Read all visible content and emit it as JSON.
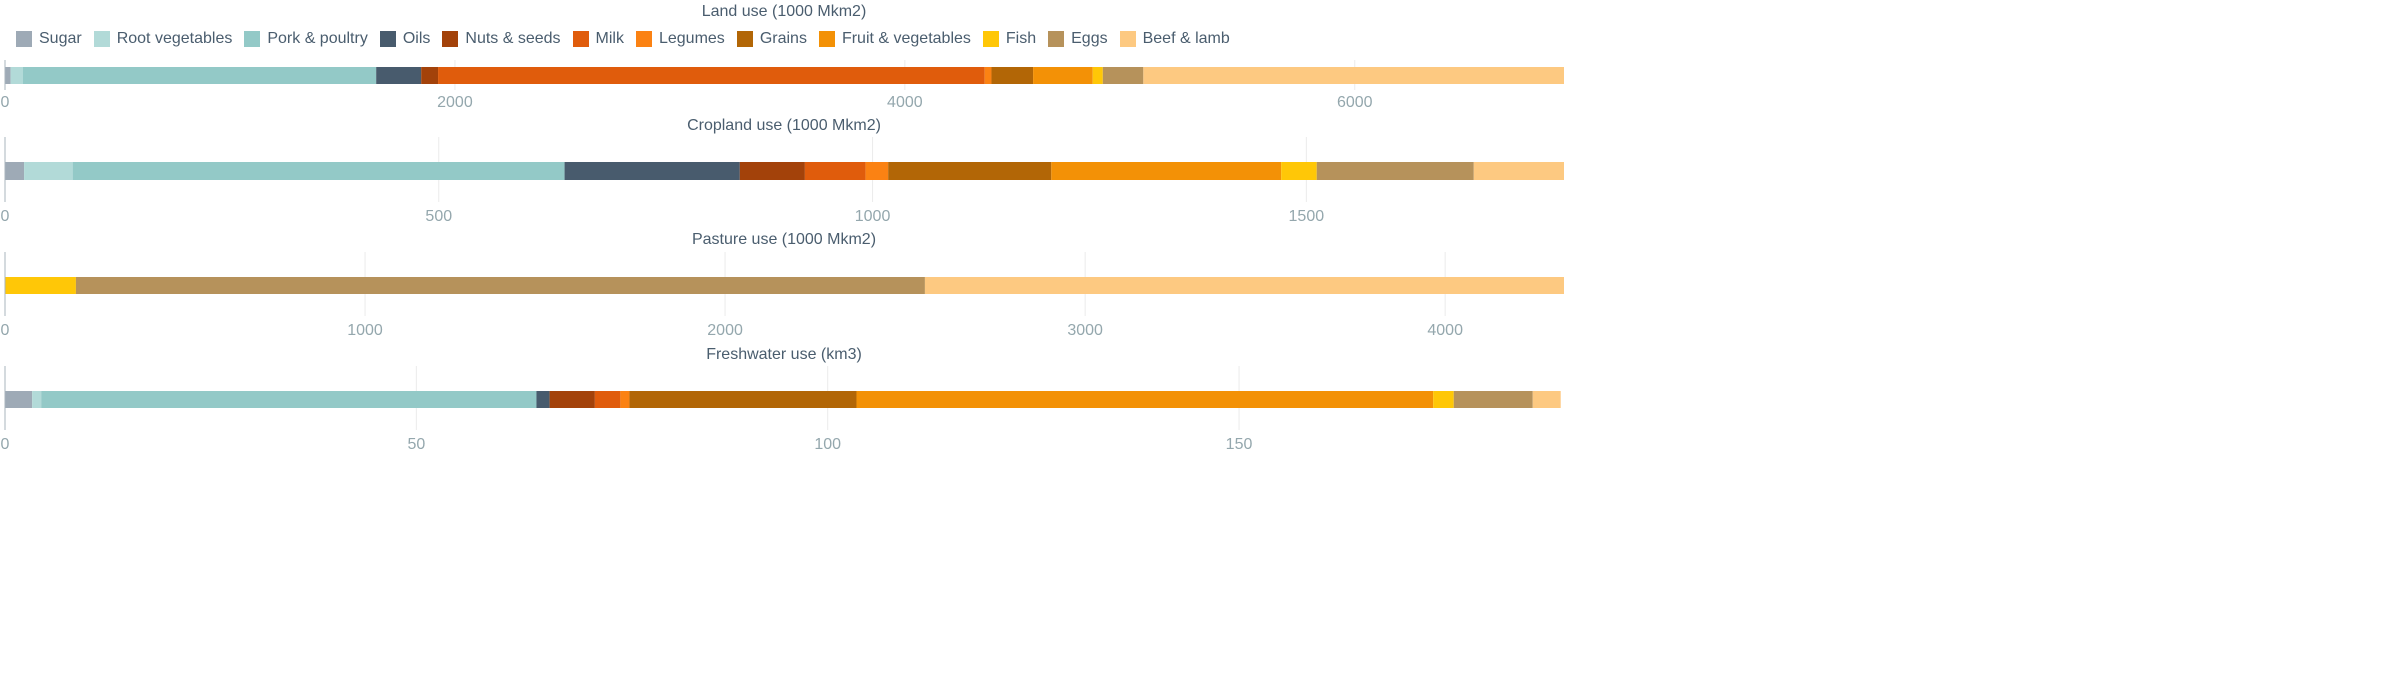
{
  "legend": [
    {
      "name": "Sugar",
      "color": "#9eaab6"
    },
    {
      "name": "Root vegetables",
      "color": "#b2dad8"
    },
    {
      "name": "Pork & poultry",
      "color": "#93c9c7"
    },
    {
      "name": "Oils",
      "color": "#485b6d"
    },
    {
      "name": "Nuts & seeds",
      "color": "#a3420a"
    },
    {
      "name": "Milk",
      "color": "#e05c0c"
    },
    {
      "name": "Legumes",
      "color": "#fb8213"
    },
    {
      "name": "Grains",
      "color": "#b26606"
    },
    {
      "name": "Fruit & vegetables",
      "color": "#f39106"
    },
    {
      "name": "Fish",
      "color": "#ffc707"
    },
    {
      "name": "Eggs",
      "color": "#b6925b"
    },
    {
      "name": "Beef & lamb",
      "color": "#fdc981"
    }
  ],
  "chart_data": [
    {
      "type": "bar",
      "orientation": "horizontal",
      "stacked": true,
      "title": "Land use (1000 Mkm2)",
      "ticks": [
        0,
        2000,
        4000,
        6000
      ],
      "xlim": [
        0,
        6930
      ],
      "series": [
        {
          "name": "Sugar",
          "value": 25
        },
        {
          "name": "Root vegetables",
          "value": 55
        },
        {
          "name": "Pork & poultry",
          "value": 1570
        },
        {
          "name": "Oils",
          "value": 200
        },
        {
          "name": "Nuts & seeds",
          "value": 75
        },
        {
          "name": "Milk",
          "value": 2430
        },
        {
          "name": "Legumes",
          "value": 30
        },
        {
          "name": "Grains",
          "value": 185
        },
        {
          "name": "Fruit & vegetables",
          "value": 265
        },
        {
          "name": "Fish",
          "value": 45
        },
        {
          "name": "Eggs",
          "value": 180
        },
        {
          "name": "Beef & lamb",
          "value": 1870
        }
      ]
    },
    {
      "type": "bar",
      "orientation": "horizontal",
      "stacked": true,
      "title": "Cropland use (1000 Mkm2)",
      "ticks": [
        0,
        500,
        1000,
        1500
      ],
      "xlim": [
        0,
        1797
      ],
      "series": [
        {
          "name": "Sugar",
          "value": 22
        },
        {
          "name": "Root vegetables",
          "value": 56
        },
        {
          "name": "Pork & poultry",
          "value": 567
        },
        {
          "name": "Oils",
          "value": 202
        },
        {
          "name": "Nuts & seeds",
          "value": 75
        },
        {
          "name": "Milk",
          "value": 70
        },
        {
          "name": "Legumes",
          "value": 26
        },
        {
          "name": "Grains",
          "value": 188
        },
        {
          "name": "Fruit & vegetables",
          "value": 265
        },
        {
          "name": "Fish",
          "value": 41
        },
        {
          "name": "Eggs",
          "value": 181
        },
        {
          "name": "Beef & lamb",
          "value": 104
        }
      ]
    },
    {
      "type": "bar",
      "orientation": "horizontal",
      "stacked": true,
      "title": "Pasture use (1000 Mkm2)",
      "ticks": [
        0,
        1000,
        2000,
        3000,
        4000
      ],
      "xlim": [
        0,
        4330
      ],
      "series": [
        {
          "name": "Fish",
          "value": 197
        },
        {
          "name": "Eggs",
          "value": 2358
        },
        {
          "name": "Beef & lamb",
          "value": 1775
        }
      ]
    },
    {
      "type": "bar",
      "orientation": "horizontal",
      "stacked": true,
      "title": "Freshwater use (km3)",
      "ticks": [
        0,
        50,
        100,
        150
      ],
      "xlim": [
        0,
        189.5
      ],
      "series": [
        {
          "name": "Sugar",
          "value": 3.3
        },
        {
          "name": "Root vegetables",
          "value": 1.1
        },
        {
          "name": "Pork & poultry",
          "value": 60.2
        },
        {
          "name": "Oils",
          "value": 1.6
        },
        {
          "name": "Nuts & seeds",
          "value": 5.5
        },
        {
          "name": "Milk",
          "value": 3.1
        },
        {
          "name": "Legumes",
          "value": 1.1
        },
        {
          "name": "Grains",
          "value": 27.6
        },
        {
          "name": "Fruit & vegetables",
          "value": 70.1
        },
        {
          "name": "Fish",
          "value": 2.5
        },
        {
          "name": "Eggs",
          "value": 9.6
        },
        {
          "name": "Beef & lamb",
          "value": 3.4
        }
      ]
    }
  ]
}
